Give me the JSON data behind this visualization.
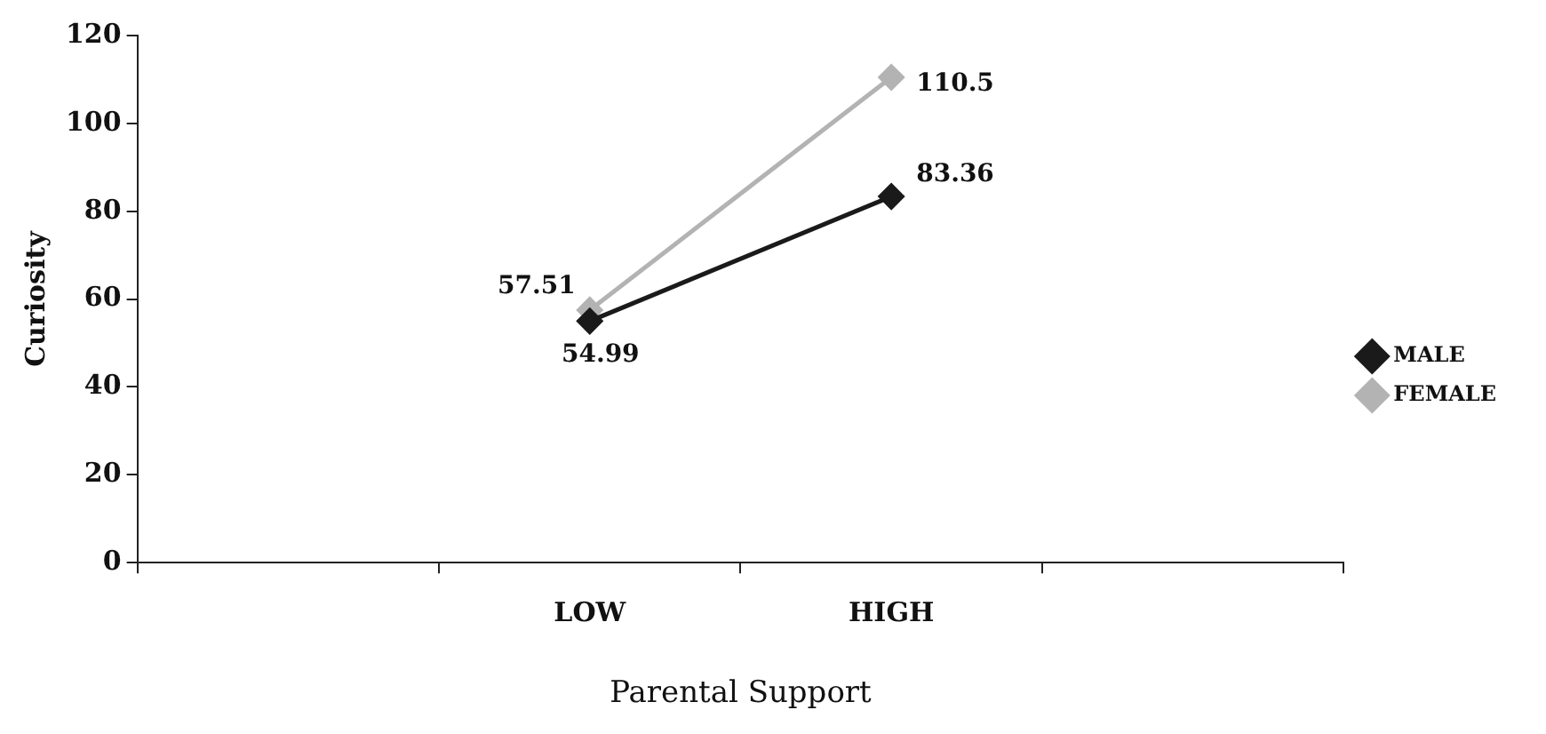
{
  "chart_data": {
    "type": "line",
    "xlabel": "Parental Support",
    "ylabel": "Curiosity",
    "categories": [
      null,
      "LOW",
      "HIGH",
      null
    ],
    "series": [
      {
        "name": "MALE",
        "color": "#1a1a1a",
        "values": [
          null,
          54.99,
          83.36,
          null
        ]
      },
      {
        "name": "FEMALE",
        "color": "#b3b3b3",
        "values": [
          null,
          57.51,
          110.5,
          null
        ]
      }
    ],
    "ylim": [
      0,
      120
    ],
    "yticks": [
      0,
      20,
      40,
      60,
      80,
      100,
      120
    ],
    "grid": false,
    "legend": "right",
    "marker": "diamond",
    "line_style": "solid",
    "data_labels": true
  }
}
